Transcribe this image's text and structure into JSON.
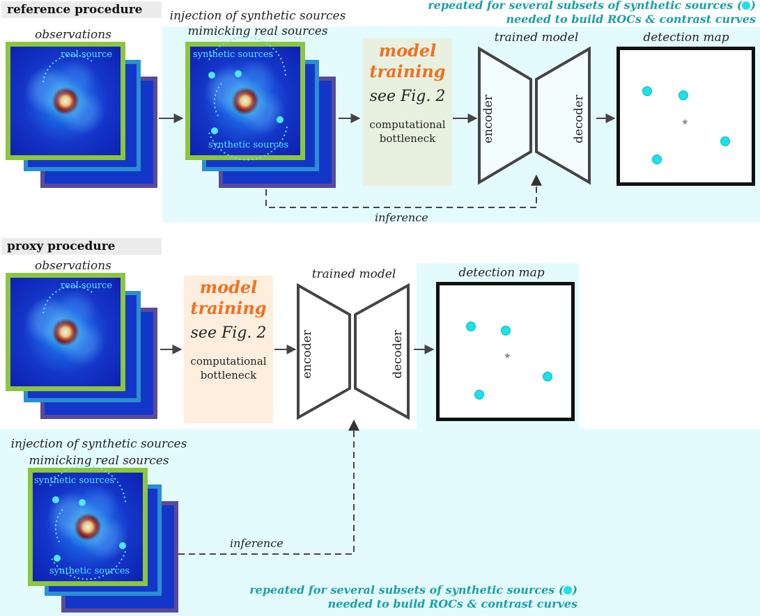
{
  "reference": {
    "title": "reference procedure",
    "observations": "observations",
    "real_source": "real source",
    "injection_line1": "injection of synthetic sources",
    "injection_line2": "mimicking real sources",
    "synthetic_top": "synthetic sources",
    "synthetic_bottom": "synthetic sources",
    "training_line1": "model",
    "training_line2": "training",
    "training_fig": "see Fig. 2",
    "bottleneck_line1": "computational",
    "bottleneck_line2": "bottleneck",
    "trained_model": "trained model",
    "encoder": "encoder",
    "decoder": "decoder",
    "detection_map": "detection map",
    "inference": "inference",
    "note_line1": "repeated for several subsets of synthetic sources (",
    "note_line1_end": ")",
    "note_line2": "needed to build ROCs & contrast curves"
  },
  "proxy": {
    "title": "proxy procedure",
    "observations": "observations",
    "real_source": "real source",
    "training_line1": "model",
    "training_line2": "training",
    "training_fig": "see Fig. 2",
    "bottleneck_line1": "computational",
    "bottleneck_line2": "bottleneck",
    "trained_model": "trained model",
    "encoder": "encoder",
    "decoder": "decoder",
    "detection_map": "detection map",
    "injection_line1": "injection of synthetic sources",
    "injection_line2": "mimicking real sources",
    "synthetic_top": "synthetic sources",
    "synthetic_bottom": "synthetic sources",
    "inference": "inference",
    "note_line1": "repeated for several subsets of synthetic sources (",
    "note_line1_end": ")",
    "note_line2": "needed to build ROCs & contrast curves"
  },
  "colors": {
    "panel": "#e4fbfd",
    "accent_orange": "#f07020",
    "note_teal": "#1aa0a6",
    "frame_green": "#8cc63f",
    "frame_blue": "#2a8fd0",
    "frame_purple": "#5a4a9a",
    "dot_cyan": "#1ee0e8"
  }
}
